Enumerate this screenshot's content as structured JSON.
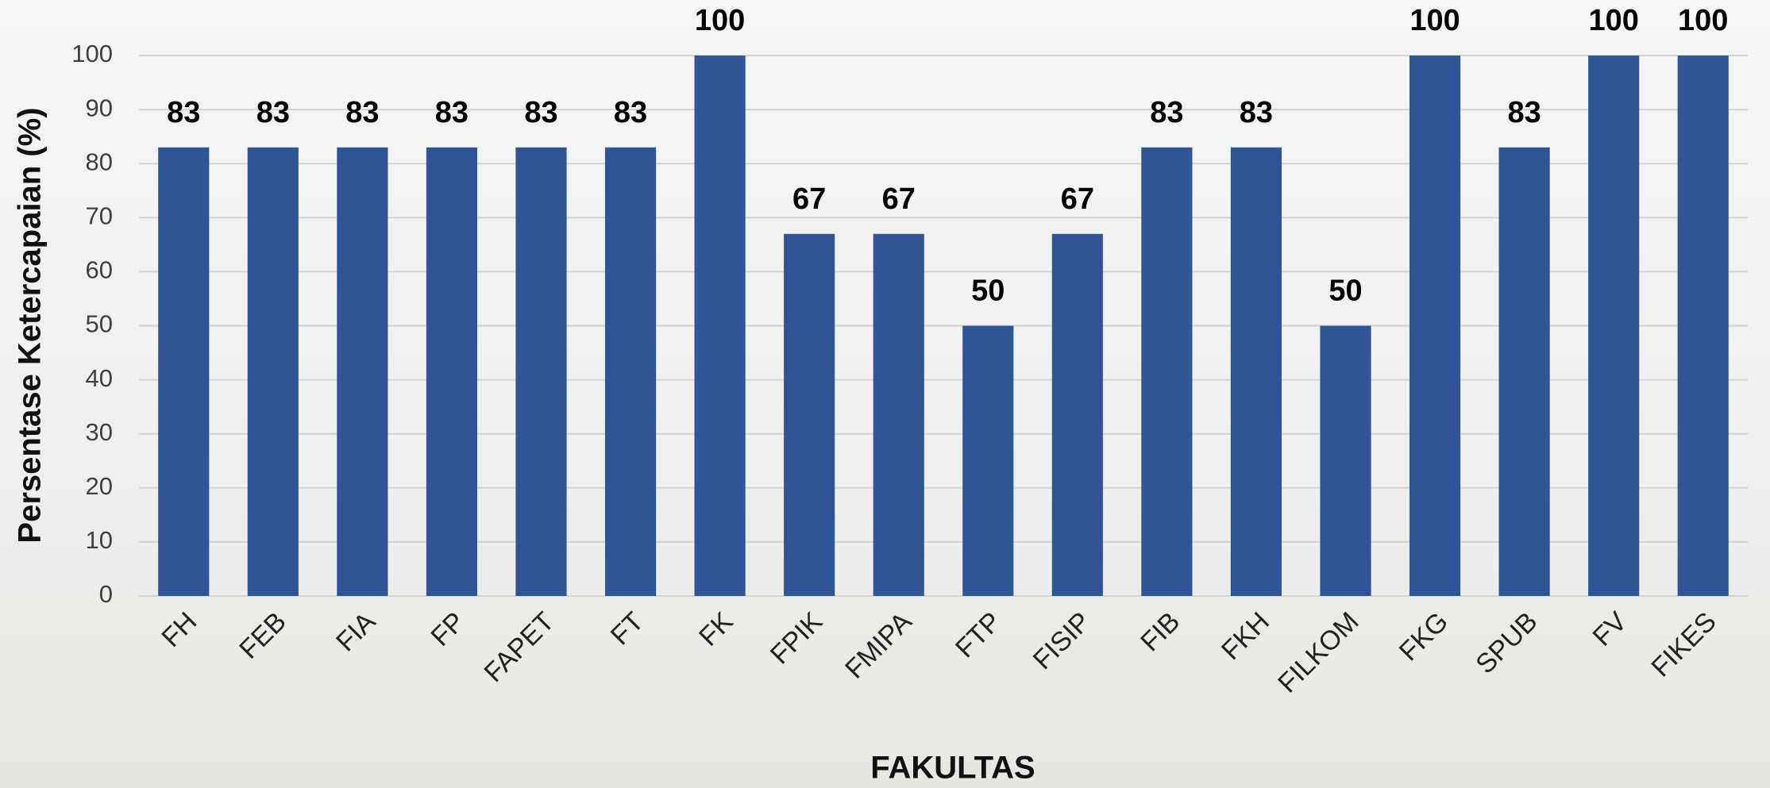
{
  "chart_data": {
    "type": "bar",
    "y_label": "Persentase Ketercapaian (%)",
    "x_label": "FAKULTAS",
    "categories": [
      "FH",
      "FEB",
      "FIA",
      "FP",
      "FAPET",
      "FT",
      "FK",
      "FPIK",
      "FMIPA",
      "FTP",
      "FISIP",
      "FIB",
      "FKH",
      "FILKOM",
      "FKG",
      "SPUB",
      "FV",
      "FIKES"
    ],
    "values": [
      83,
      83,
      83,
      83,
      83,
      83,
      100,
      67,
      67,
      50,
      67,
      83,
      83,
      50,
      100,
      83,
      100,
      100
    ],
    "color": "#2f5597",
    "ylim": [
      0,
      100
    ],
    "yticks": [
      0,
      10,
      20,
      30,
      40,
      50,
      60,
      70,
      80,
      90,
      100
    ],
    "grid": true
  }
}
